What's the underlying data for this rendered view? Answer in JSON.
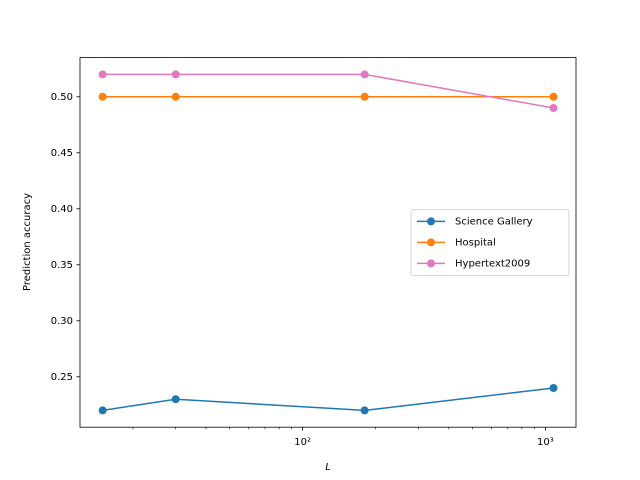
{
  "chart_data": {
    "type": "line",
    "xlabel": "L",
    "ylabel": "Prediction accuracy",
    "x": [
      15,
      30,
      180,
      1080
    ],
    "series": [
      {
        "name": "Science Gallery",
        "color": "#1f77b4",
        "values": [
          0.22,
          0.23,
          0.22,
          0.24
        ]
      },
      {
        "name": "Hospital",
        "color": "#ff7f0e",
        "values": [
          0.5,
          0.5,
          0.5,
          0.5
        ]
      },
      {
        "name": "Hypertext2009",
        "color": "#e377c2",
        "values": [
          0.52,
          0.52,
          0.52,
          0.49
        ]
      }
    ],
    "xscale": "log",
    "xlim": [
      12.1,
      1337
    ],
    "xticks": [
      {
        "value": 100,
        "label": "10²"
      },
      {
        "value": 1000,
        "label": "10³"
      }
    ],
    "xminorticks": [
      20,
      30,
      40,
      50,
      60,
      70,
      80,
      90,
      200,
      300,
      400,
      500,
      600,
      700,
      800,
      900
    ],
    "ylim": [
      0.205,
      0.535
    ],
    "yticks": [
      0.25,
      {
        "value": 0.3,
        "label": "0.30"
      },
      0.35,
      {
        "value": 0.4,
        "label": "0.40"
      },
      0.45,
      {
        "value": 0.5,
        "label": "0.50"
      }
    ],
    "legend": "center right"
  }
}
